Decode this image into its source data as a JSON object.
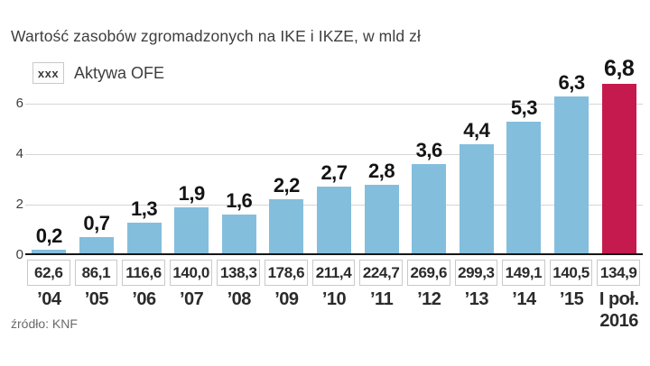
{
  "title": "Wartość zasobów zgromadzonych na IKE i IKZE, w mld zł",
  "legend": {
    "swatch_text": "xxx",
    "label": "Aktywa OFE"
  },
  "source": "źródło: KNF",
  "colors": {
    "bar": "#84bedd",
    "highlight_bar": "#c51a4d",
    "grid": "#d5d5d5",
    "axis": "#161616",
    "box_border": "#c9c9c9",
    "text": "#3e3e3e"
  },
  "chart_data": {
    "type": "bar",
    "title": "Wartość zasobów zgromadzonych na IKE i IKZE, w mld zł",
    "unit": "mld zł",
    "categories": [
      "’04",
      "’05",
      "’06",
      "’07",
      "’08",
      "’09",
      "’10",
      "’11",
      "’12",
      "’13",
      "’14",
      "’15",
      "I poł.\n2016"
    ],
    "values": [
      0.2,
      0.7,
      1.3,
      1.9,
      1.6,
      2.2,
      2.7,
      2.8,
      3.6,
      4.4,
      5.3,
      6.3,
      6.8
    ],
    "value_labels": [
      "0,2",
      "0,7",
      "1,3",
      "1,9",
      "1,6",
      "2,2",
      "2,7",
      "2,8",
      "3,6",
      "4,4",
      "5,3",
      "6,3",
      "6,8"
    ],
    "highlight_index": 12,
    "yticks": [
      0,
      2,
      4,
      6
    ],
    "ylim": [
      0,
      7
    ],
    "grid": true,
    "legend_position": "top-left",
    "secondary_row": {
      "name": "Aktywa OFE",
      "labels": [
        "62,6",
        "86,1",
        "116,6",
        "140,0",
        "138,3",
        "178,6",
        "211,4",
        "224,7",
        "269,6",
        "299,3",
        "149,1",
        "140,5",
        "134,9"
      ],
      "values": [
        62.6,
        86.1,
        116.6,
        140.0,
        138.3,
        178.6,
        211.4,
        224.7,
        269.6,
        299.3,
        149.1,
        140.5,
        134.9
      ]
    },
    "source": "źródło: KNF"
  }
}
